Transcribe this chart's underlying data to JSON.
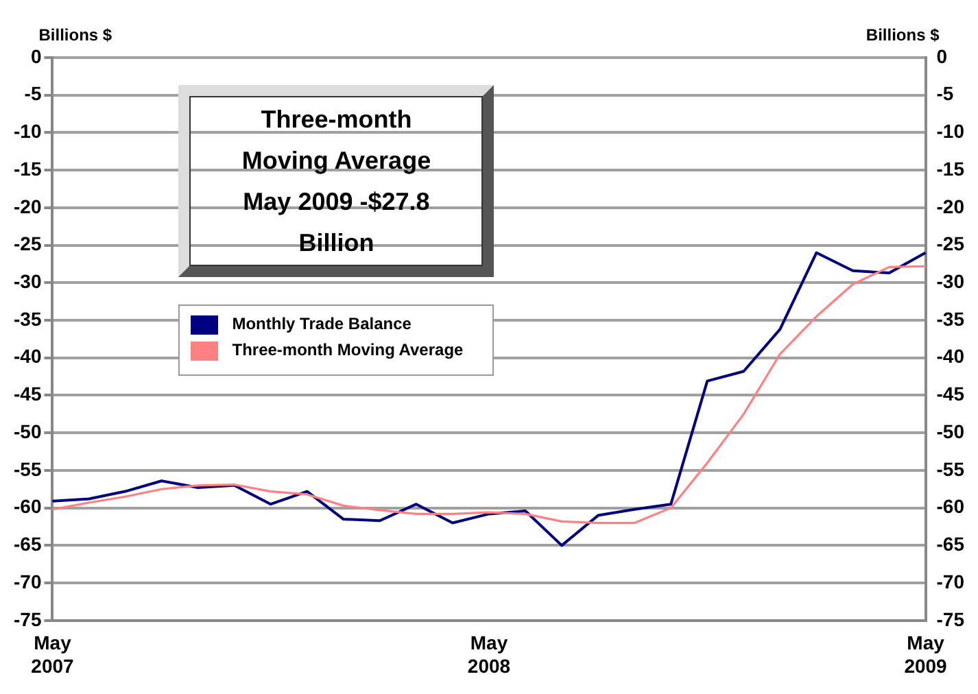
{
  "chart_data": {
    "type": "line",
    "ylabel": "Billions $",
    "y2label": "Billions $",
    "annotations": [
      "Three-month Moving Average May 2009 -$27.8 Billion"
    ],
    "categories": [
      "May 2007",
      null,
      null,
      null,
      null,
      null,
      null,
      null,
      null,
      null,
      null,
      null,
      "May 2008",
      null,
      null,
      null,
      null,
      null,
      null,
      null,
      null,
      null,
      null,
      null,
      "May 2009"
    ],
    "series": [
      {
        "name": "Monthly Trade Balance",
        "color": "#000080",
        "values": [
          -59.1,
          -58.8,
          -57.8,
          -56.4,
          -57.3,
          -57,
          -59.5,
          -57.8,
          -61.5,
          -61.7,
          -59.5,
          -62,
          -60.8,
          -60.4,
          -65,
          -61,
          -60.2,
          -59.5,
          -43.1,
          -41.8,
          -36.2,
          -26,
          -28.4,
          -28.7,
          -26
        ]
      },
      {
        "name": "Three-month Moving Average",
        "color": "#ff8080",
        "values": [
          -60.2,
          -59.3,
          -58.5,
          -57.5,
          -57,
          -56.9,
          -57.8,
          -58.2,
          -59.7,
          -60.3,
          -60.8,
          -60.8,
          -60.6,
          -60.8,
          -61.8,
          -62,
          -62,
          -60,
          -54,
          -47.5,
          -39.5,
          -34.5,
          -30.2,
          -27.9,
          -27.8
        ]
      }
    ],
    "ylim": [
      -75,
      0
    ],
    "yticks": [
      -75,
      -70,
      -65,
      -60,
      -55,
      -50,
      -45,
      -40,
      -35,
      -30,
      -25,
      -20,
      -15,
      -10,
      -5,
      0
    ],
    "y2lim": [
      -75,
      0
    ],
    "y2ticks": [
      -75,
      -70,
      -65,
      -60,
      -55,
      -50,
      -45,
      -40,
      -35,
      -30,
      -25,
      -20,
      -15,
      -10,
      -5,
      0
    ],
    "grid": "y",
    "legend": "top left",
    "marker": "none",
    "line_style": "solid"
  }
}
